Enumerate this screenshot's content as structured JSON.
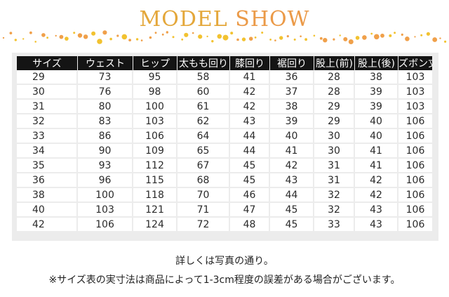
{
  "header": {
    "title_part1": "MODEL",
    "title_part2": "SHOW"
  },
  "table": {
    "columns": [
      "サイズ",
      "ウェスト",
      "ヒップ",
      "太もも回り",
      "膝回り",
      "裾回り",
      "股上(前)",
      "股上(後)",
      "ズボン丈"
    ],
    "rows": [
      [
        "29",
        "73",
        "95",
        "58",
        "41",
        "36",
        "28",
        "38",
        "103"
      ],
      [
        "30",
        "76",
        "98",
        "60",
        "42",
        "37",
        "28",
        "39",
        "103"
      ],
      [
        "31",
        "80",
        "100",
        "61",
        "42",
        "38",
        "29",
        "39",
        "103"
      ],
      [
        "32",
        "83",
        "103",
        "62",
        "43",
        "39",
        "29",
        "40",
        "106"
      ],
      [
        "33",
        "86",
        "106",
        "64",
        "44",
        "40",
        "30",
        "40",
        "106"
      ],
      [
        "34",
        "90",
        "109",
        "65",
        "44",
        "41",
        "30",
        "41",
        "106"
      ],
      [
        "35",
        "93",
        "112",
        "67",
        "45",
        "42",
        "31",
        "41",
        "106"
      ],
      [
        "36",
        "96",
        "115",
        "68",
        "45",
        "43",
        "31",
        "42",
        "106"
      ],
      [
        "38",
        "100",
        "118",
        "70",
        "46",
        "44",
        "32",
        "42",
        "106"
      ],
      [
        "40",
        "103",
        "121",
        "71",
        "47",
        "45",
        "32",
        "43",
        "106"
      ],
      [
        "42",
        "106",
        "124",
        "72",
        "48",
        "45",
        "33",
        "43",
        "106"
      ]
    ]
  },
  "notes": {
    "line1": "詳しくは写真の通り。",
    "line2": "※サイズ表の実寸法は商品によって1-3cm程度の誤差がある場合がございます。"
  },
  "colors": {
    "title_gold": "#e4a73a",
    "title_orange": "#eb9a48",
    "dot_gold": "#f2c230",
    "dot_orange": "#f0a04a",
    "header_bg": "#141414",
    "panel_bg": "#ececec"
  }
}
